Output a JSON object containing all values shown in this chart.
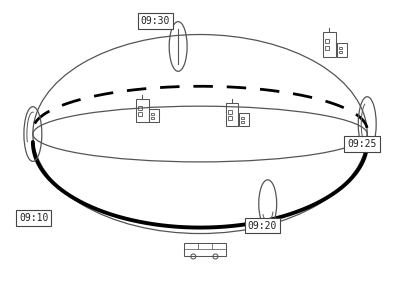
{
  "bg_color": "#ffffff",
  "line_color": "#555555",
  "thick_line_color": "#000000",
  "fig_width": 4.17,
  "fig_height": 2.82,
  "dpi": 100
}
